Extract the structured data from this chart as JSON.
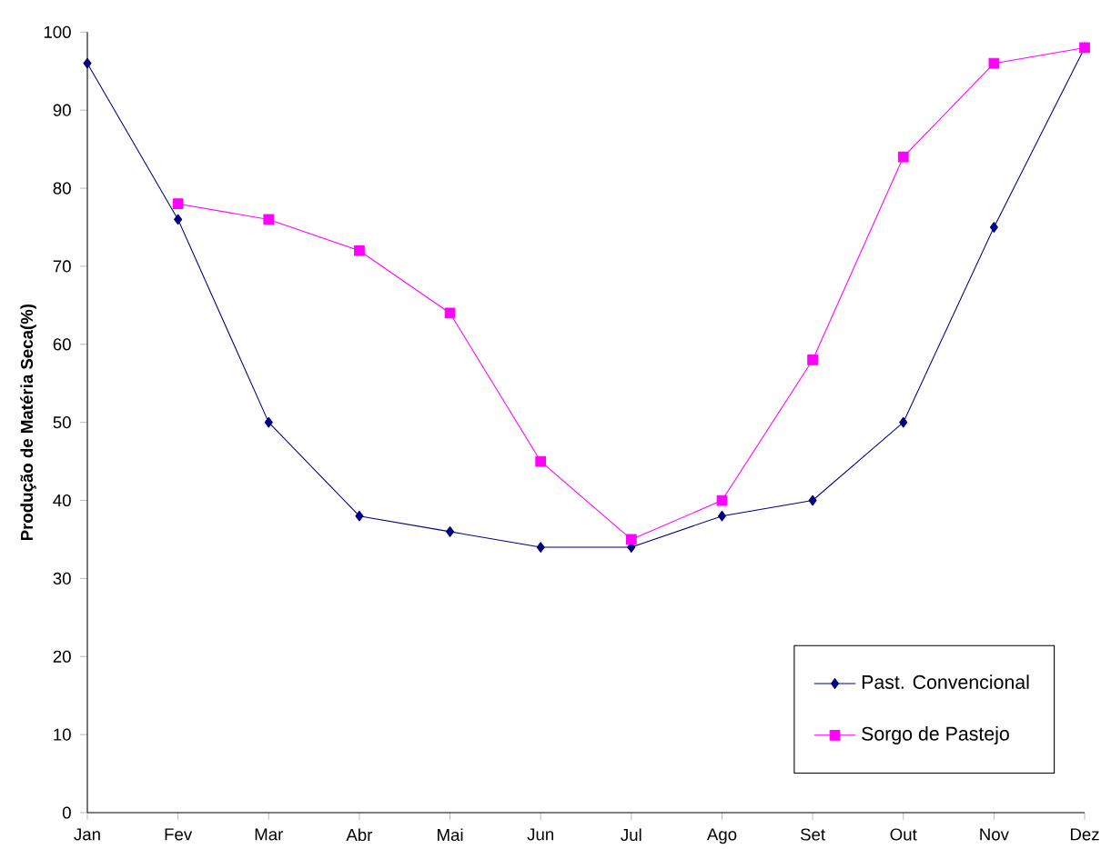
{
  "chart_data": {
    "type": "line",
    "ylabel": "Produção de Matéria Seca(%)",
    "categories": [
      "Jan",
      "Fev",
      "Mar",
      "Abr",
      "Mai",
      "Jun",
      "Jul",
      "Ago",
      "Set",
      "Out",
      "Nov",
      "Dez"
    ],
    "series": [
      {
        "name": "Past. Convencional",
        "color": "#000080",
        "marker": "diamond",
        "values": [
          96,
          76,
          50,
          38,
          36,
          34,
          34,
          38,
          40,
          50,
          75,
          98
        ]
      },
      {
        "name": "Sorgo de Pastejo",
        "color": "#ff00ff",
        "marker": "square",
        "values": [
          null,
          78,
          76,
          72,
          64,
          45,
          35,
          40,
          58,
          84,
          96,
          98
        ]
      }
    ],
    "ylim": [
      0,
      100
    ],
    "yticks": [
      0,
      10,
      20,
      30,
      40,
      50,
      60,
      70,
      80,
      90,
      100
    ],
    "grid": false,
    "legend": "bottom right",
    "line_style": "solid"
  }
}
